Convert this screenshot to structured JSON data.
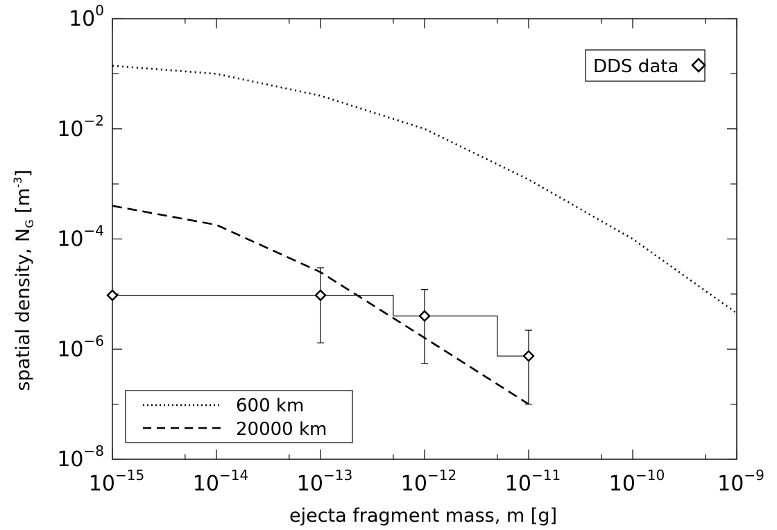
{
  "chart_data": {
    "type": "line",
    "xlabel": "ejecta fragment mass, m [g]",
    "ylabel": "spatial density, N",
    "ylabel_sub": "G",
    "ylabel_unit": " [m",
    "ylabel_unit_exp": "-3",
    "ylabel_close": "]",
    "xscale": "log",
    "yscale": "log",
    "xlim": [
      1e-15,
      1e-09
    ],
    "ylim": [
      1e-08,
      1
    ],
    "grid": false,
    "x_ticks": [
      {
        "exp": -15,
        "base": "10",
        "sup": "−15"
      },
      {
        "exp": -14,
        "base": "10",
        "sup": "−14"
      },
      {
        "exp": -13,
        "base": "10",
        "sup": "−13"
      },
      {
        "exp": -12,
        "base": "10",
        "sup": "−12"
      },
      {
        "exp": -11,
        "base": "10",
        "sup": "−11"
      },
      {
        "exp": -10,
        "base": "10",
        "sup": "−10"
      },
      {
        "exp": -9,
        "base": "10",
        "sup": "−9"
      }
    ],
    "y_ticks": [
      {
        "exp": 0,
        "base": "10",
        "sup": "0"
      },
      {
        "exp": -2,
        "base": "10",
        "sup": "−2"
      },
      {
        "exp": -4,
        "base": "10",
        "sup": "−4"
      },
      {
        "exp": -6,
        "base": "10",
        "sup": "−6"
      },
      {
        "exp": -8,
        "base": "10",
        "sup": "−8"
      }
    ],
    "series": [
      {
        "name": "600 km",
        "style": "dotted",
        "x": [
          1e-15,
          1e-14,
          1e-13,
          1e-12,
          1e-11,
          1e-10,
          1e-09
        ],
        "y": [
          0.14,
          0.1,
          0.04,
          0.01,
          0.0012,
          0.0001,
          4.5e-06
        ]
      },
      {
        "name": "20000 km",
        "style": "dashed",
        "x": [
          1e-15,
          1e-14,
          1e-13,
          1e-12,
          1e-11
        ],
        "y": [
          0.0004,
          0.00018,
          2.5e-05,
          1.6e-06,
          1e-07
        ]
      }
    ],
    "dds_data": {
      "name": "DDS data",
      "points": [
        {
          "x": 1e-15,
          "y": 9.5e-06,
          "ylo": null,
          "yhi": null
        },
        {
          "x": 1e-13,
          "y": 9.5e-06,
          "ylo": 1.3e-06,
          "yhi": 3e-05
        },
        {
          "x": 1e-12,
          "y": 4e-06,
          "ylo": 5.5e-07,
          "yhi": 1.2e-05
        },
        {
          "x": 1e-11,
          "y": 7.5e-07,
          "ylo": 1e-07,
          "yhi": 2.2e-06
        }
      ],
      "histogram": {
        "edges": [
          1e-15,
          5e-13,
          5e-12,
          1e-11
        ],
        "values": [
          9.5e-06,
          4e-06,
          7.5e-07
        ]
      }
    },
    "legend_lines": {
      "placement": "bottom-left",
      "entries": [
        "600 km",
        "20000 km"
      ]
    },
    "legend_points": {
      "placement": "top-right",
      "label": "DDS data"
    }
  }
}
